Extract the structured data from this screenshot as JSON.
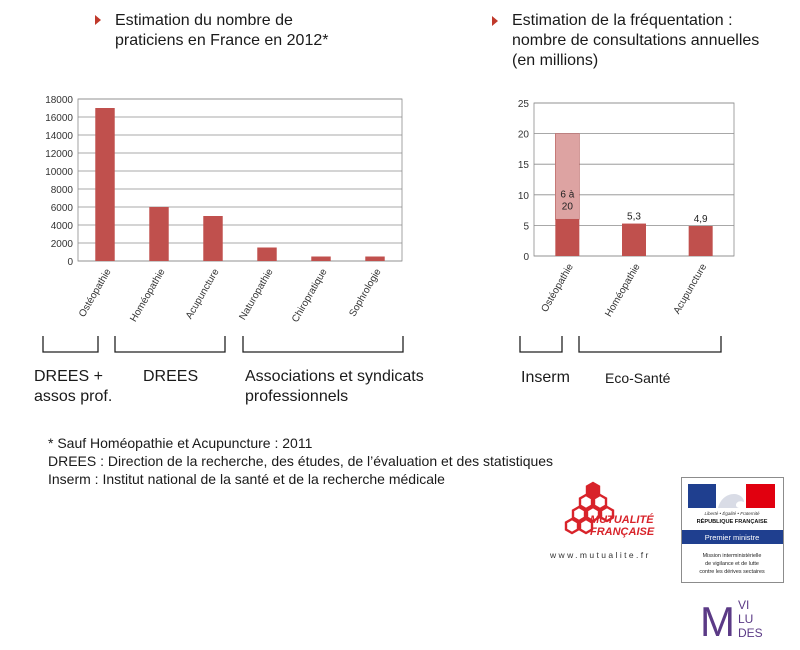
{
  "left_title": {
    "line1": "Estimation du nombre de",
    "line2": "praticiens en France en 2012*"
  },
  "right_title": {
    "line1": "Estimation de la fréquentation :",
    "line2": "nombre de consultations annuelles",
    "line3": "(en millions)"
  },
  "chart_data": [
    {
      "type": "bar",
      "categories": [
        "Ostéopathie",
        "Homéopathie",
        "Acupuncture",
        "Naturopathie",
        "Chiropratique",
        "Sophrologie"
      ],
      "values": [
        17000,
        6000,
        5000,
        1500,
        500,
        500
      ],
      "ylim": [
        0,
        18000
      ],
      "yticks": [
        0,
        2000,
        4000,
        6000,
        8000,
        10000,
        12000,
        14000,
        16000,
        18000
      ],
      "grid": true,
      "color": "#c0504d"
    },
    {
      "type": "bar",
      "categories": [
        "Ostéopathie",
        "Homéopathie",
        "Acupuncture"
      ],
      "values": [
        6,
        5.3,
        4.9
      ],
      "upper_range": [
        20,
        null,
        null
      ],
      "data_labels": [
        "6 à 20",
        "5,3",
        "4,9"
      ],
      "ylim": [
        0,
        25
      ],
      "yticks": [
        0,
        5,
        10,
        15,
        20,
        25
      ],
      "grid": true,
      "color": "#c0504d",
      "range_color": "#dda3a2"
    }
  ],
  "sources_left": {
    "drees_asso_line1": "DREES +",
    "drees_asso_line2": "assos prof.",
    "drees": "DREES",
    "assoc_line1": "Associations et syndicats",
    "assoc_line2": "professionnels"
  },
  "sources_right": {
    "inserm": "Inserm",
    "ecosante": "Eco-Santé"
  },
  "notes": {
    "line1": "* Sauf Homéopathie et Acupuncture : 2011",
    "line2": "DREES : Direction de la recherche, des études, de l’évaluation et des statistiques",
    "line3": "Inserm : Institut national de la santé et de la recherche médicale"
  },
  "logos": {
    "mutualite_line1": "MUTUALITÉ",
    "mutualite_line2": "FRANÇAISE",
    "mutualite_url": "www.mutualite.fr",
    "pm_motto": "Liberté • Égalité • Fraternité",
    "pm_republique": "RÉPUBLIQUE FRANÇAISE",
    "pm_title": "Premier ministre",
    "pm_mission_line1": "Mission interministérielle",
    "pm_mission_line2": "de vigilance et de lutte",
    "pm_mission_line3": "contre les dérives sectaires",
    "miviludes_m": "M",
    "miviludes_vi": "VI",
    "miviludes_lu": "LU",
    "miviludes_des": "DES"
  },
  "colors": {
    "bar": "#c0504d",
    "bar_range": "#dda3a2",
    "bullet": "#c0392b",
    "mutualite_red": "#d8232a",
    "pm_blue": "#1f3f8f",
    "miviludes_purple": "#5b3a86"
  }
}
